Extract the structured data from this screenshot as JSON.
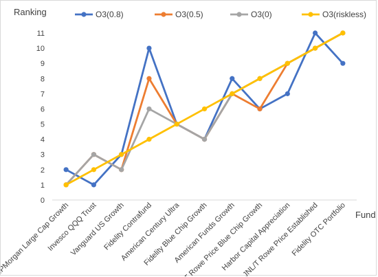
{
  "chart_data": {
    "type": "line",
    "ylabel": "Ranking",
    "xlabel": "Fund",
    "ylim": [
      0,
      11
    ],
    "yticks": [
      0,
      1,
      2,
      3,
      4,
      5,
      6,
      7,
      8,
      9,
      10,
      11
    ],
    "grid": false,
    "legend_position": "top",
    "categories": [
      "JPMorgan Large Cap Growth",
      "Invesco QQQ Trust",
      "Vanguard US Growth",
      "Fidelity Contrafund",
      "American Century Ultra",
      "Fidelity Blue Chip Growth",
      "American Funds Growth",
      "T Rowe Price Blue Chip Growth",
      "Harbor Capital Appreciation",
      "JNL/T Rowe Price Established",
      "Fidelity OTC Portfolio"
    ],
    "series": [
      {
        "name": "O3(0.8)",
        "color": "#4472c4",
        "values": [
          2,
          1,
          3,
          10,
          5,
          4,
          8,
          6,
          7,
          11,
          9
        ]
      },
      {
        "name": "O3(0.5)",
        "color": "#ed7d31",
        "values": [
          1,
          3,
          2,
          8,
          5,
          4,
          7,
          6,
          9,
          10,
          11
        ]
      },
      {
        "name": "O3(0)",
        "color": "#a5a5a5",
        "values": [
          1,
          3,
          2,
          6,
          5,
          4,
          7,
          8,
          9,
          10,
          11
        ]
      },
      {
        "name": "O3(riskless)",
        "color": "#ffc000",
        "values": [
          1,
          2,
          3,
          4,
          5,
          6,
          7,
          8,
          9,
          10,
          11
        ]
      }
    ]
  }
}
